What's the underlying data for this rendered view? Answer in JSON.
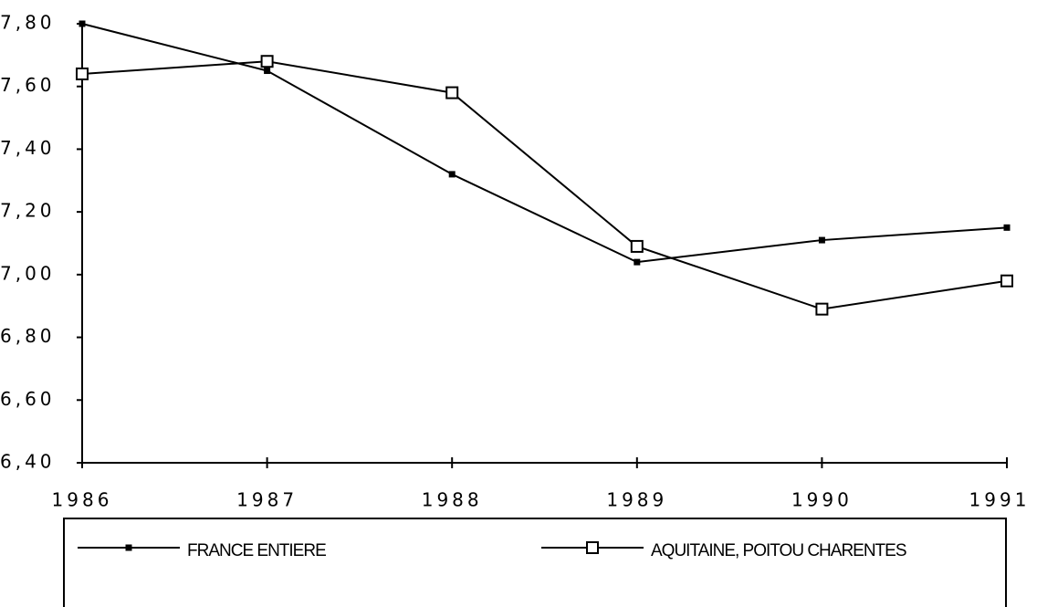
{
  "chart_data": {
    "type": "line",
    "categories": [
      "1986",
      "1987",
      "1988",
      "1989",
      "1990",
      "1991"
    ],
    "series": [
      {
        "name": "FRANCE ENTIERE",
        "color": "#000000",
        "marker": "filled-square",
        "values": [
          7.8,
          7.65,
          7.32,
          7.04,
          7.11,
          7.15
        ]
      },
      {
        "name": "AQUITAINE, POITOU CHARENTES",
        "color": "#000000",
        "marker": "open-square",
        "values": [
          7.64,
          7.68,
          7.58,
          7.09,
          6.89,
          6.98
        ]
      }
    ],
    "ylim": [
      6.4,
      7.8
    ],
    "yticks": [
      {
        "value": 6.4,
        "label": "6,40"
      },
      {
        "value": 6.6,
        "label": "6,60"
      },
      {
        "value": 6.8,
        "label": "6,80"
      },
      {
        "value": 7.0,
        "label": "7,00"
      },
      {
        "value": 7.2,
        "label": "7,20"
      },
      {
        "value": 7.4,
        "label": "7,40"
      },
      {
        "value": 7.6,
        "label": "7,60"
      },
      {
        "value": 7.8,
        "label": "7,80"
      }
    ],
    "grid": false,
    "legend": "bottom"
  }
}
